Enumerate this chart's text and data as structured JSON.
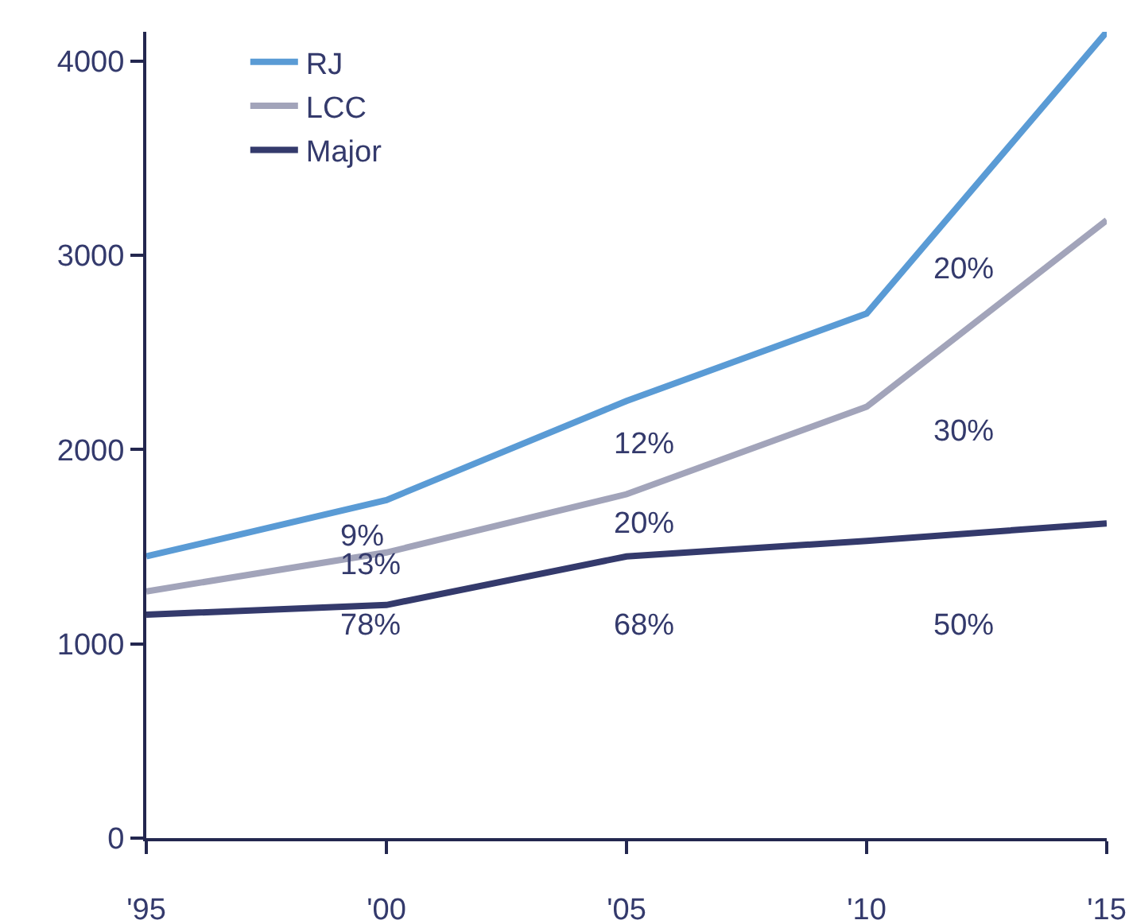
{
  "chart_data": {
    "type": "line",
    "x": [
      1995,
      2000,
      2005,
      2010,
      2015
    ],
    "series": [
      {
        "name": "RJ",
        "color": "#5a9bd5",
        "values": [
          1450,
          1740,
          2250,
          2700,
          4150
        ]
      },
      {
        "name": "LCC",
        "color": "#a2a4ba",
        "values": [
          1270,
          1470,
          1770,
          2220,
          3180
        ]
      },
      {
        "name": "Major",
        "color": "#343a6c",
        "values": [
          1150,
          1200,
          1450,
          1530,
          1620
        ]
      }
    ],
    "xlim": [
      1995,
      2015
    ],
    "xticks": [
      {
        "value": 1995,
        "label": "'95"
      },
      {
        "value": 2000,
        "label": "'00"
      },
      {
        "value": 2005,
        "label": "'05"
      },
      {
        "value": 2010,
        "label": "'10"
      },
      {
        "value": 2015,
        "label": "'15"
      }
    ],
    "ylim": [
      0,
      4150
    ],
    "yticks": [
      0,
      1000,
      2000,
      3000,
      4000
    ],
    "annotations": [
      "78%",
      "13%",
      "9%",
      "68%",
      "20%",
      "12%",
      "50%",
      "30%",
      "20%"
    ],
    "grid": false,
    "legend": "top left",
    "marker": "none",
    "line_style": "solid"
  }
}
